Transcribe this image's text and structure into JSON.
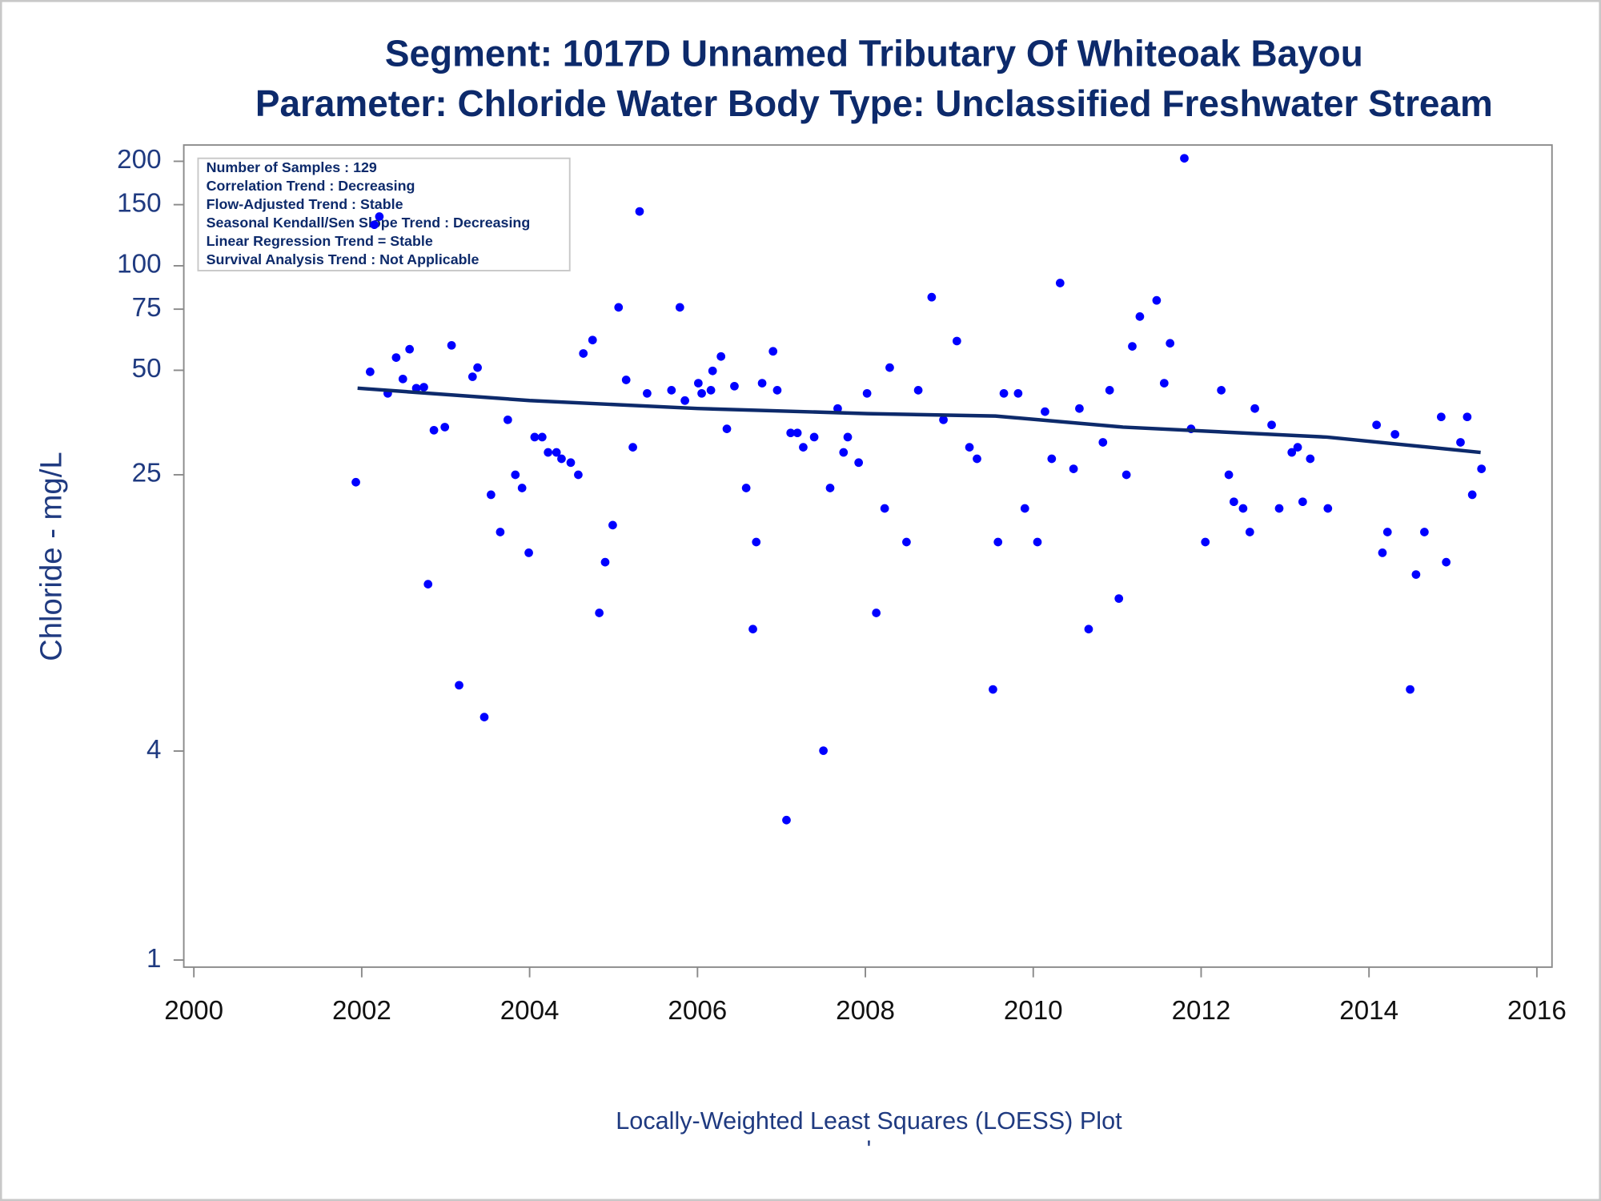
{
  "chart_data": {
    "type": "scatter",
    "title": "Segment: 1017D  Unnamed Tributary Of Whiteoak Bayou",
    "subtitle": "Parameter: Chloride   Water Body Type: Unclassified Freshwater Stream",
    "ylabel": "Chloride - mg/L",
    "footnote": "Locally-Weighted Least Squares (LOESS) Plot",
    "footnote2": "'",
    "info_box": [
      "Number of Samples : 129",
      "Correlation Trend : Decreasing",
      "Flow-Adjusted Trend : Stable",
      "Seasonal Kendall/Sen Slope Trend : Decreasing",
      "Linear Regression Trend = Stable",
      "Survival Analysis Trend : Not Applicable"
    ],
    "yscale": "log",
    "xlim": [
      1999.88,
      2016.18
    ],
    "ylim": [
      0.954,
      222.8
    ],
    "xticks": [
      2000,
      2002,
      2004,
      2006,
      2008,
      2010,
      2012,
      2014,
      2016
    ],
    "yticks": [
      1,
      4,
      25,
      50,
      75,
      100,
      150,
      200
    ],
    "color": "#0000ff",
    "x": [
      2001.93,
      2002.1,
      2002.31,
      2002.41,
      2002.49,
      2002.57,
      2002.65,
      2002.74,
      2002.79,
      2002.86,
      2002.21,
      2002.15,
      2002.99,
      2003.07,
      2003.16,
      2003.32,
      2003.38,
      2003.46,
      2003.54,
      2003.65,
      2003.74,
      2003.83,
      2003.91,
      2003.99,
      2004.06,
      2004.15,
      2004.22,
      2004.32,
      2004.38,
      2004.49,
      2004.58,
      2004.64,
      2004.75,
      2004.83,
      2004.9,
      2004.99,
      2005.06,
      2005.15,
      2005.23,
      2005.31,
      2005.4,
      2005.69,
      2005.79,
      2005.85,
      2006.01,
      2006.05,
      2006.16,
      2006.18,
      2006.28,
      2006.35,
      2006.44,
      2006.58,
      2006.66,
      2006.7,
      2006.77,
      2006.9,
      2006.95,
      2007.06,
      2007.11,
      2007.19,
      2007.26,
      2007.39,
      2007.5,
      2007.58,
      2007.67,
      2007.74,
      2007.79,
      2007.92,
      2008.02,
      2008.13,
      2008.23,
      2008.29,
      2008.49,
      2008.63,
      2008.79,
      2008.93,
      2009.09,
      2009.24,
      2009.33,
      2009.52,
      2009.58,
      2009.65,
      2009.82,
      2009.9,
      2010.05,
      2010.14,
      2010.22,
      2010.32,
      2010.48,
      2010.55,
      2010.66,
      2010.83,
      2010.91,
      2011.02,
      2011.11,
      2011.18,
      2011.27,
      2011.47,
      2011.56,
      2011.63,
      2011.8,
      2011.88,
      2012.05,
      2012.24,
      2012.33,
      2012.39,
      2012.5,
      2012.58,
      2012.64,
      2012.84,
      2012.93,
      2013.08,
      2013.15,
      2013.21,
      2013.3,
      2013.51,
      2014.09,
      2014.16,
      2014.22,
      2014.31,
      2014.49,
      2014.56,
      2014.66,
      2014.86,
      2014.92,
      2015.09,
      2015.17,
      2015.23,
      2015.34
    ],
    "values": [
      23.8,
      49.5,
      42.9,
      54.4,
      47.2,
      57.5,
      44.4,
      44.7,
      12.1,
      33.6,
      138.6,
      131.3,
      34.3,
      59.0,
      6.19,
      47.9,
      50.9,
      5.01,
      21.9,
      17.1,
      36.0,
      25.0,
      22.9,
      14.9,
      32.1,
      32.1,
      29.0,
      29.0,
      27.8,
      27.1,
      25.0,
      55.9,
      61.1,
      10.0,
      14.0,
      17.9,
      75.9,
      46.9,
      30.0,
      143.4,
      42.9,
      43.8,
      75.9,
      40.9,
      45.9,
      42.9,
      43.8,
      49.8,
      54.8,
      33.9,
      45.0,
      22.9,
      8.98,
      16.0,
      45.9,
      56.7,
      43.8,
      2.53,
      33.0,
      33.0,
      30.0,
      32.1,
      4.01,
      22.9,
      38.8,
      29.0,
      32.1,
      27.1,
      42.9,
      10.0,
      20.0,
      50.9,
      16.0,
      43.8,
      81.2,
      36.0,
      60.7,
      30.0,
      27.8,
      6.02,
      16.0,
      42.9,
      42.9,
      20.0,
      16.0,
      38.0,
      27.8,
      89.2,
      26.0,
      38.8,
      8.98,
      31.0,
      43.8,
      11.0,
      25.0,
      58.6,
      71.4,
      79.5,
      45.9,
      59.8,
      204,
      33.9,
      16.0,
      43.8,
      25.0,
      20.9,
      20.0,
      17.1,
      38.8,
      34.8,
      20.0,
      29.0,
      30.0,
      20.9,
      27.8,
      20.0,
      34.8,
      14.9,
      17.1,
      32.7,
      6.02,
      12.9,
      17.1,
      36.7,
      14.0,
      31.0,
      36.7,
      21.9,
      26.0
    ],
    "fit": {
      "color": "#0d2a6b",
      "x": [
        2001.95,
        2004.0,
        2006.0,
        2008.03,
        2009.55,
        2011.07,
        2013.5,
        2015.33
      ],
      "values": [
        44.4,
        40.9,
        38.8,
        37.5,
        36.9,
        34.3,
        32.1,
        29.0
      ]
    }
  }
}
